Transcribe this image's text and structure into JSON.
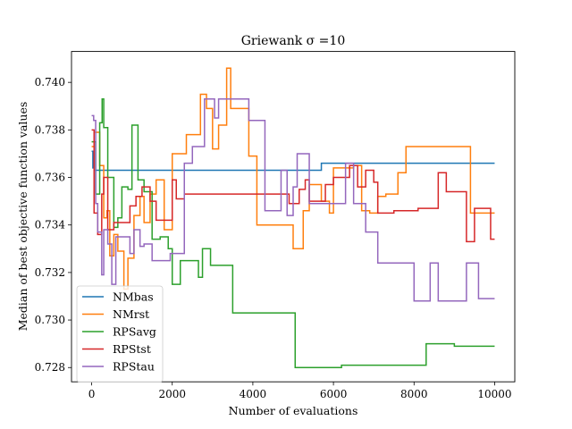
{
  "chart_data": {
    "type": "line",
    "title": "Griewank σ =10",
    "xlabel": "Number of evaluations",
    "ylabel": "Median of best objective function values",
    "xlim": [
      -500,
      10500
    ],
    "ylim": [
      0.7274,
      0.7413
    ],
    "xticks": [
      0,
      2000,
      4000,
      6000,
      8000,
      10000
    ],
    "xtick_labels": [
      "0",
      "2000",
      "4000",
      "6000",
      "8000",
      "10000"
    ],
    "yticks": [
      0.728,
      0.73,
      0.732,
      0.734,
      0.736,
      0.738,
      0.74
    ],
    "ytick_labels": [
      "0.728",
      "0.730",
      "0.732",
      "0.734",
      "0.736",
      "0.738",
      "0.740"
    ],
    "grid": false,
    "legend_position": "lower-left",
    "series": [
      {
        "name": "NMbas",
        "color": "#1f77b4",
        "points": [
          [
            0,
            0.7371
          ],
          [
            30,
            0.7371
          ],
          [
            30,
            0.7364
          ],
          [
            60,
            0.7364
          ],
          [
            60,
            0.7363
          ],
          [
            5700,
            0.7363
          ],
          [
            5700,
            0.7366
          ],
          [
            10000,
            0.7366
          ]
        ]
      },
      {
        "name": "NMrst",
        "color": "#ff7f0e",
        "points": [
          [
            0,
            0.7373
          ],
          [
            60,
            0.7373
          ],
          [
            60,
            0.7379
          ],
          [
            200,
            0.7379
          ],
          [
            200,
            0.7365
          ],
          [
            300,
            0.7365
          ],
          [
            300,
            0.7343
          ],
          [
            380,
            0.7343
          ],
          [
            380,
            0.7346
          ],
          [
            450,
            0.7346
          ],
          [
            450,
            0.7327
          ],
          [
            550,
            0.7327
          ],
          [
            550,
            0.7336
          ],
          [
            650,
            0.7336
          ],
          [
            650,
            0.7329
          ],
          [
            800,
            0.7329
          ],
          [
            800,
            0.7313
          ],
          [
            900,
            0.7313
          ],
          [
            900,
            0.7326
          ],
          [
            1050,
            0.7326
          ],
          [
            1050,
            0.7344
          ],
          [
            1200,
            0.7344
          ],
          [
            1200,
            0.7352
          ],
          [
            1300,
            0.7352
          ],
          [
            1300,
            0.7341
          ],
          [
            1450,
            0.7341
          ],
          [
            1450,
            0.7353
          ],
          [
            1600,
            0.7353
          ],
          [
            1600,
            0.7359
          ],
          [
            1800,
            0.7359
          ],
          [
            1800,
            0.7338
          ],
          [
            2000,
            0.7338
          ],
          [
            2000,
            0.737
          ],
          [
            2350,
            0.737
          ],
          [
            2350,
            0.7378
          ],
          [
            2700,
            0.7378
          ],
          [
            2700,
            0.7395
          ],
          [
            2850,
            0.7395
          ],
          [
            2850,
            0.7389
          ],
          [
            3000,
            0.7389
          ],
          [
            3000,
            0.7372
          ],
          [
            3150,
            0.7372
          ],
          [
            3150,
            0.7382
          ],
          [
            3350,
            0.7382
          ],
          [
            3350,
            0.7406
          ],
          [
            3450,
            0.7406
          ],
          [
            3450,
            0.7389
          ],
          [
            3900,
            0.7389
          ],
          [
            3900,
            0.7369
          ],
          [
            4100,
            0.7369
          ],
          [
            4100,
            0.734
          ],
          [
            4700,
            0.734
          ],
          [
            4700,
            0.734
          ],
          [
            5000,
            0.734
          ],
          [
            5000,
            0.733
          ],
          [
            5250,
            0.733
          ],
          [
            5250,
            0.7346
          ],
          [
            5400,
            0.7346
          ],
          [
            5400,
            0.7357
          ],
          [
            5700,
            0.7357
          ],
          [
            5700,
            0.735
          ],
          [
            5900,
            0.735
          ],
          [
            5900,
            0.7345
          ],
          [
            6000,
            0.7345
          ],
          [
            6000,
            0.7364
          ],
          [
            6500,
            0.7364
          ],
          [
            6500,
            0.7365
          ],
          [
            6700,
            0.7365
          ],
          [
            6700,
            0.7346
          ],
          [
            6900,
            0.7346
          ],
          [
            6900,
            0.7345
          ],
          [
            7100,
            0.7345
          ],
          [
            7100,
            0.7352
          ],
          [
            7300,
            0.7352
          ],
          [
            7300,
            0.7353
          ],
          [
            7600,
            0.7353
          ],
          [
            7600,
            0.7362
          ],
          [
            7800,
            0.7362
          ],
          [
            7800,
            0.7373
          ],
          [
            9400,
            0.7373
          ],
          [
            9400,
            0.7345
          ],
          [
            10000,
            0.7345
          ]
        ]
      },
      {
        "name": "RPSavg",
        "color": "#2ca02c",
        "points": [
          [
            0,
            0.7375
          ],
          [
            100,
            0.7375
          ],
          [
            100,
            0.7353
          ],
          [
            200,
            0.7353
          ],
          [
            200,
            0.7383
          ],
          [
            260,
            0.7383
          ],
          [
            260,
            0.7393
          ],
          [
            300,
            0.7393
          ],
          [
            300,
            0.7381
          ],
          [
            400,
            0.7381
          ],
          [
            400,
            0.736
          ],
          [
            550,
            0.736
          ],
          [
            550,
            0.7339
          ],
          [
            650,
            0.7339
          ],
          [
            650,
            0.7343
          ],
          [
            750,
            0.7343
          ],
          [
            750,
            0.7356
          ],
          [
            900,
            0.7356
          ],
          [
            900,
            0.7355
          ],
          [
            1000,
            0.7355
          ],
          [
            1000,
            0.7382
          ],
          [
            1150,
            0.7382
          ],
          [
            1150,
            0.7359
          ],
          [
            1300,
            0.7359
          ],
          [
            1300,
            0.7354
          ],
          [
            1500,
            0.7354
          ],
          [
            1500,
            0.7334
          ],
          [
            1700,
            0.7334
          ],
          [
            1700,
            0.7335
          ],
          [
            1900,
            0.7335
          ],
          [
            1900,
            0.733
          ],
          [
            2000,
            0.733
          ],
          [
            2000,
            0.7315
          ],
          [
            2200,
            0.7315
          ],
          [
            2200,
            0.7325
          ],
          [
            2650,
            0.7325
          ],
          [
            2650,
            0.7318
          ],
          [
            2750,
            0.7318
          ],
          [
            2750,
            0.733
          ],
          [
            2950,
            0.733
          ],
          [
            2950,
            0.7323
          ],
          [
            3500,
            0.7323
          ],
          [
            3500,
            0.7303
          ],
          [
            5050,
            0.7303
          ],
          [
            5050,
            0.728
          ],
          [
            6200,
            0.728
          ],
          [
            6200,
            0.7281
          ],
          [
            8300,
            0.7281
          ],
          [
            8300,
            0.729
          ],
          [
            9000,
            0.729
          ],
          [
            9000,
            0.7289
          ],
          [
            10000,
            0.7289
          ]
        ]
      },
      {
        "name": "RPStst",
        "color": "#d62728",
        "points": [
          [
            0,
            0.738
          ],
          [
            60,
            0.738
          ],
          [
            60,
            0.7345
          ],
          [
            150,
            0.7345
          ],
          [
            150,
            0.7336
          ],
          [
            250,
            0.7336
          ],
          [
            250,
            0.7353
          ],
          [
            300,
            0.7353
          ],
          [
            300,
            0.736
          ],
          [
            400,
            0.736
          ],
          [
            400,
            0.7338
          ],
          [
            550,
            0.7338
          ],
          [
            550,
            0.7341
          ],
          [
            950,
            0.7341
          ],
          [
            950,
            0.7348
          ],
          [
            1100,
            0.7348
          ],
          [
            1100,
            0.7352
          ],
          [
            1250,
            0.7352
          ],
          [
            1250,
            0.7356
          ],
          [
            1450,
            0.7356
          ],
          [
            1450,
            0.735
          ],
          [
            1600,
            0.735
          ],
          [
            1600,
            0.7342
          ],
          [
            2000,
            0.7342
          ],
          [
            2000,
            0.7359
          ],
          [
            2100,
            0.7359
          ],
          [
            2100,
            0.7351
          ],
          [
            2300,
            0.7351
          ],
          [
            2300,
            0.7353
          ],
          [
            4900,
            0.7353
          ],
          [
            4900,
            0.7349
          ],
          [
            5150,
            0.7349
          ],
          [
            5150,
            0.7355
          ],
          [
            5300,
            0.7355
          ],
          [
            5300,
            0.7359
          ],
          [
            5400,
            0.7359
          ],
          [
            5400,
            0.735
          ],
          [
            5800,
            0.735
          ],
          [
            5800,
            0.7357
          ],
          [
            6000,
            0.7357
          ],
          [
            6000,
            0.736
          ],
          [
            6400,
            0.736
          ],
          [
            6400,
            0.7365
          ],
          [
            6600,
            0.7365
          ],
          [
            6600,
            0.7356
          ],
          [
            6800,
            0.7356
          ],
          [
            6800,
            0.7363
          ],
          [
            7000,
            0.7363
          ],
          [
            7000,
            0.7358
          ],
          [
            7100,
            0.7358
          ],
          [
            7100,
            0.7345
          ],
          [
            7500,
            0.7345
          ],
          [
            7500,
            0.7346
          ],
          [
            8100,
            0.7346
          ],
          [
            8100,
            0.7347
          ],
          [
            8400,
            0.7347
          ],
          [
            8400,
            0.7347
          ],
          [
            8600,
            0.7347
          ],
          [
            8600,
            0.7362
          ],
          [
            8800,
            0.7362
          ],
          [
            8800,
            0.7354
          ],
          [
            9300,
            0.7354
          ],
          [
            9300,
            0.7333
          ],
          [
            9500,
            0.7333
          ],
          [
            9500,
            0.7347
          ],
          [
            9900,
            0.7347
          ],
          [
            9900,
            0.7334
          ],
          [
            10000,
            0.7334
          ]
        ]
      },
      {
        "name": "RPStau",
        "color": "#9467bd",
        "points": [
          [
            0,
            0.7386
          ],
          [
            50,
            0.7386
          ],
          [
            50,
            0.7384
          ],
          [
            100,
            0.7384
          ],
          [
            100,
            0.7349
          ],
          [
            150,
            0.7349
          ],
          [
            150,
            0.7337
          ],
          [
            250,
            0.7337
          ],
          [
            250,
            0.7319
          ],
          [
            300,
            0.7319
          ],
          [
            300,
            0.7338
          ],
          [
            400,
            0.7338
          ],
          [
            400,
            0.7332
          ],
          [
            500,
            0.7332
          ],
          [
            500,
            0.7315
          ],
          [
            600,
            0.7315
          ],
          [
            600,
            0.7335
          ],
          [
            950,
            0.7335
          ],
          [
            950,
            0.7328
          ],
          [
            1050,
            0.7328
          ],
          [
            1050,
            0.7338
          ],
          [
            1200,
            0.7338
          ],
          [
            1200,
            0.7331
          ],
          [
            1300,
            0.7331
          ],
          [
            1300,
            0.7332
          ],
          [
            1500,
            0.7332
          ],
          [
            1500,
            0.7325
          ],
          [
            1950,
            0.7325
          ],
          [
            1950,
            0.7328
          ],
          [
            2300,
            0.7328
          ],
          [
            2300,
            0.7366
          ],
          [
            2500,
            0.7366
          ],
          [
            2500,
            0.7373
          ],
          [
            2800,
            0.7373
          ],
          [
            2800,
            0.7393
          ],
          [
            3050,
            0.7393
          ],
          [
            3050,
            0.7385
          ],
          [
            3150,
            0.7385
          ],
          [
            3150,
            0.7393
          ],
          [
            3900,
            0.7393
          ],
          [
            3900,
            0.7384
          ],
          [
            4300,
            0.7384
          ],
          [
            4300,
            0.7346
          ],
          [
            4700,
            0.7346
          ],
          [
            4700,
            0.7363
          ],
          [
            4850,
            0.7363
          ],
          [
            4850,
            0.7344
          ],
          [
            5000,
            0.7344
          ],
          [
            5000,
            0.7356
          ],
          [
            5100,
            0.7356
          ],
          [
            5100,
            0.737
          ],
          [
            5400,
            0.737
          ],
          [
            5400,
            0.7349
          ],
          [
            6300,
            0.7349
          ],
          [
            6300,
            0.7366
          ],
          [
            6500,
            0.7366
          ],
          [
            6500,
            0.7349
          ],
          [
            6800,
            0.7349
          ],
          [
            6800,
            0.7337
          ],
          [
            7100,
            0.7337
          ],
          [
            7100,
            0.7324
          ],
          [
            8000,
            0.7324
          ],
          [
            8000,
            0.7308
          ],
          [
            8400,
            0.7308
          ],
          [
            8400,
            0.7324
          ],
          [
            8600,
            0.7324
          ],
          [
            8600,
            0.7308
          ],
          [
            9300,
            0.7308
          ],
          [
            9300,
            0.7324
          ],
          [
            9600,
            0.7324
          ],
          [
            9600,
            0.7309
          ],
          [
            10000,
            0.7309
          ]
        ]
      }
    ]
  }
}
